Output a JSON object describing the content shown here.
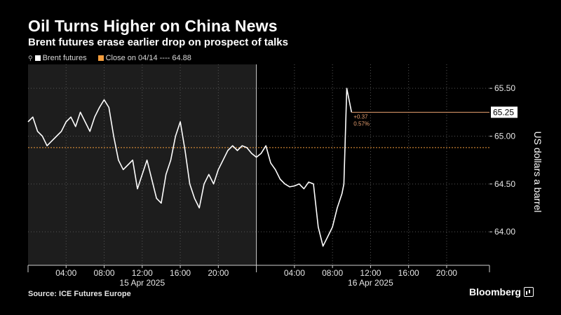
{
  "header": {
    "title": "Oil Turns Higher on China News",
    "subtitle": "Brent futures erase earlier drop on prospect of talks"
  },
  "legend": {
    "series_label": "Brent futures",
    "close_label": "Close on 04/14 ---- 64.88",
    "series_color": "#ffffff",
    "close_color": "#f39c3c"
  },
  "footer": {
    "source": "Source: ICE Futures Europe",
    "brand": "Bloomberg"
  },
  "chart_data": {
    "type": "line",
    "ylabel": "US dollars a barrel",
    "ylim": [
      63.65,
      65.75
    ],
    "yticks": [
      64.0,
      64.5,
      65.0,
      65.5
    ],
    "ytick_labels": [
      "64.00",
      "64.50",
      "65.00",
      "65.50"
    ],
    "xlim_hours": [
      0,
      48.5
    ],
    "xticks_hours": [
      4,
      8,
      12,
      16,
      20,
      28,
      32,
      36,
      40,
      44
    ],
    "xtick_labels": [
      "04:00",
      "08:00",
      "12:00",
      "16:00",
      "20:00",
      "04:00",
      "08:00",
      "12:00",
      "16:00",
      "20:00"
    ],
    "day_labels": [
      {
        "hour": 12,
        "label": "15 Apr 2025"
      },
      {
        "hour": 36,
        "label": "16 Apr 2025"
      }
    ],
    "day_divider_hour": 24,
    "shaded_day_range_hours": [
      0,
      24
    ],
    "close_reference": 64.88,
    "last_value_label": "65.25",
    "change_label": "+0.37",
    "change_pct_label": "0.57%",
    "series": [
      {
        "name": "Brent futures",
        "color": "#ffffff",
        "x_hours": [
          0,
          0.5,
          1,
          1.5,
          2,
          2.5,
          3,
          3.5,
          4,
          4.5,
          5,
          5.5,
          6,
          6.5,
          7,
          7.5,
          8,
          8.5,
          9,
          9.5,
          10,
          10.5,
          11,
          11.5,
          12,
          12.5,
          13,
          13.5,
          14,
          14.5,
          15,
          15.5,
          16,
          16.5,
          17,
          17.5,
          18,
          18.5,
          19,
          19.5,
          20,
          20.5,
          21,
          21.5,
          22,
          22.5,
          23,
          23.5,
          24,
          24.5,
          25,
          25.5,
          26,
          26.5,
          27,
          27.5,
          28,
          28.5,
          29,
          29.5,
          30,
          30.5,
          31,
          31.5,
          32,
          32.5,
          33,
          33.2,
          33.5,
          34
        ],
        "values": [
          65.15,
          65.2,
          65.05,
          65.0,
          64.9,
          64.95,
          65.0,
          65.05,
          65.15,
          65.2,
          65.1,
          65.25,
          65.15,
          65.05,
          65.2,
          65.3,
          65.38,
          65.3,
          65.0,
          64.75,
          64.65,
          64.7,
          64.75,
          64.45,
          64.6,
          64.75,
          64.55,
          64.35,
          64.3,
          64.6,
          64.75,
          65.0,
          65.15,
          64.85,
          64.5,
          64.35,
          64.25,
          64.5,
          64.6,
          64.5,
          64.65,
          64.75,
          64.85,
          64.9,
          64.85,
          64.9,
          64.88,
          64.82,
          64.78,
          64.82,
          64.9,
          64.72,
          64.65,
          64.55,
          64.5,
          64.47,
          64.48,
          64.5,
          64.45,
          64.52,
          64.5,
          64.05,
          63.85,
          63.95,
          64.05,
          64.25,
          64.4,
          64.5,
          65.5,
          65.25
        ]
      }
    ]
  }
}
